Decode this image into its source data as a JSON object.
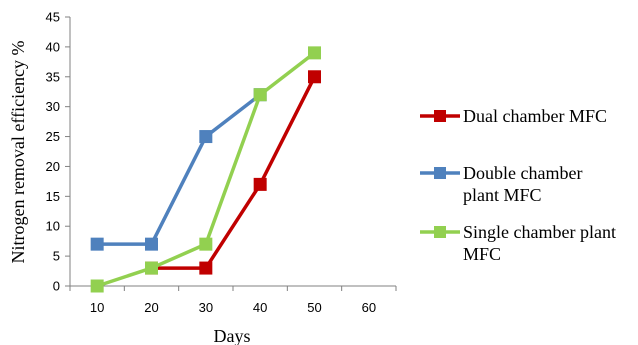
{
  "chart_data": {
    "type": "line",
    "xlabel": "Days",
    "ylabel": "Nitrogen removal efficiency %",
    "x_categories": [
      "10",
      "20",
      "30",
      "40",
      "50",
      "60"
    ],
    "ylim": [
      0,
      45
    ],
    "yticks": [
      "0",
      "5",
      "10",
      "15",
      "20",
      "25",
      "30",
      "35",
      "40",
      "45"
    ],
    "grid": false,
    "legend_position": "right",
    "series": [
      {
        "name_lines": [
          "Dual chamber MFC"
        ],
        "color": "#C00000",
        "marker": "square",
        "x": [
          "20",
          "30",
          "40",
          "50"
        ],
        "y": [
          3,
          3,
          17,
          35
        ]
      },
      {
        "name_lines": [
          "Double chamber",
          "plant MFC"
        ],
        "color": "#4F81BD",
        "marker": "square",
        "x": [
          "10",
          "20",
          "30",
          "40"
        ],
        "y": [
          7,
          7,
          25,
          32
        ]
      },
      {
        "name_lines": [
          "Single chamber plant",
          "MFC"
        ],
        "color": "#92D050",
        "marker": "square",
        "x": [
          "10",
          "20",
          "30",
          "40",
          "50"
        ],
        "y": [
          0,
          3,
          7,
          32,
          39
        ]
      }
    ]
  }
}
